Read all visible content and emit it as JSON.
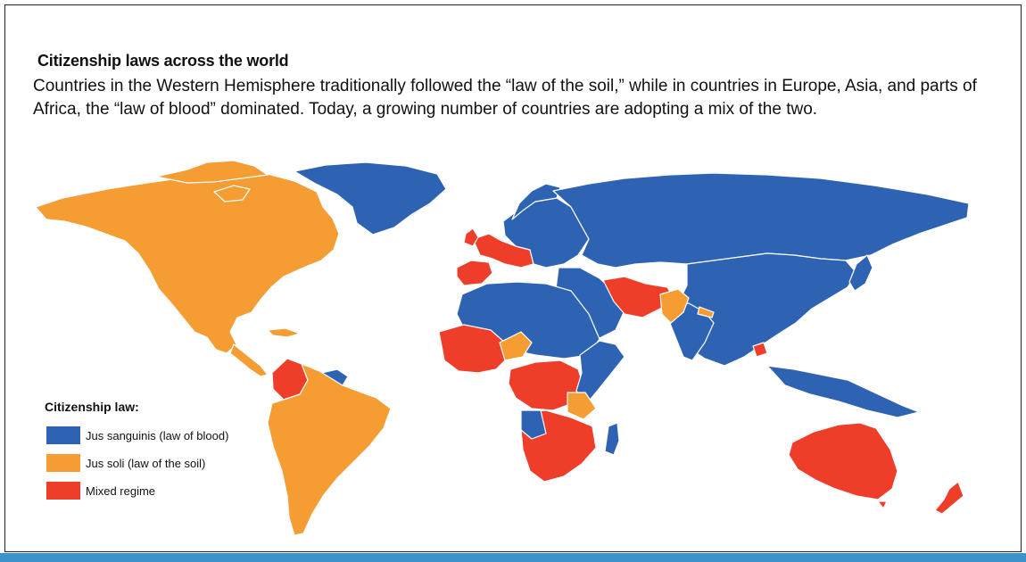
{
  "header": {
    "title": "Citizenship laws across the world",
    "subtitle": "Countries in the Western Hemisphere traditionally followed the “law of the soil,” while in countries in Europe, Asia, and parts of Africa, the “law of blood” dominated. Today, a growing number of countries are adopting a mix of the two."
  },
  "legend": {
    "title": "Citizenship law:",
    "items": [
      {
        "label": "Jus sanguinis (law of blood)",
        "color": "#2e63b3"
      },
      {
        "label": "Jus soli (law of the soil)",
        "color": "#f59c33"
      },
      {
        "label": "Mixed regime",
        "color": "#ee3e2a"
      }
    ]
  },
  "colors": {
    "jus_sanguinis": "#2e63b3",
    "jus_soli": "#f59c33",
    "mixed": "#ee3e2a",
    "border": "#ffffff",
    "accent_bar": "#3d93c9"
  },
  "regions": {
    "north_america": "jus_soli",
    "greenland": "jus_sanguinis",
    "central_america": "jus_soli",
    "colombia": "mixed",
    "guianas": "jus_sanguinis",
    "south_america": "jus_soli",
    "western_europe": "mixed",
    "iberia": "mixed",
    "eastern_europe": "jus_sanguinis",
    "russia_and_asia": "jus_sanguinis",
    "iran_afghanistan": "mixed",
    "pakistan": "jus_soli",
    "north_africa": "jus_sanguinis",
    "west_africa": "mixed",
    "central_africa": "mixed",
    "east_africa": "jus_sanguinis",
    "southern_africa": "mixed",
    "madagascar": "jus_sanguinis",
    "australia": "mixed",
    "new_zealand": "mixed",
    "southeast_asia": "jus_sanguinis"
  }
}
